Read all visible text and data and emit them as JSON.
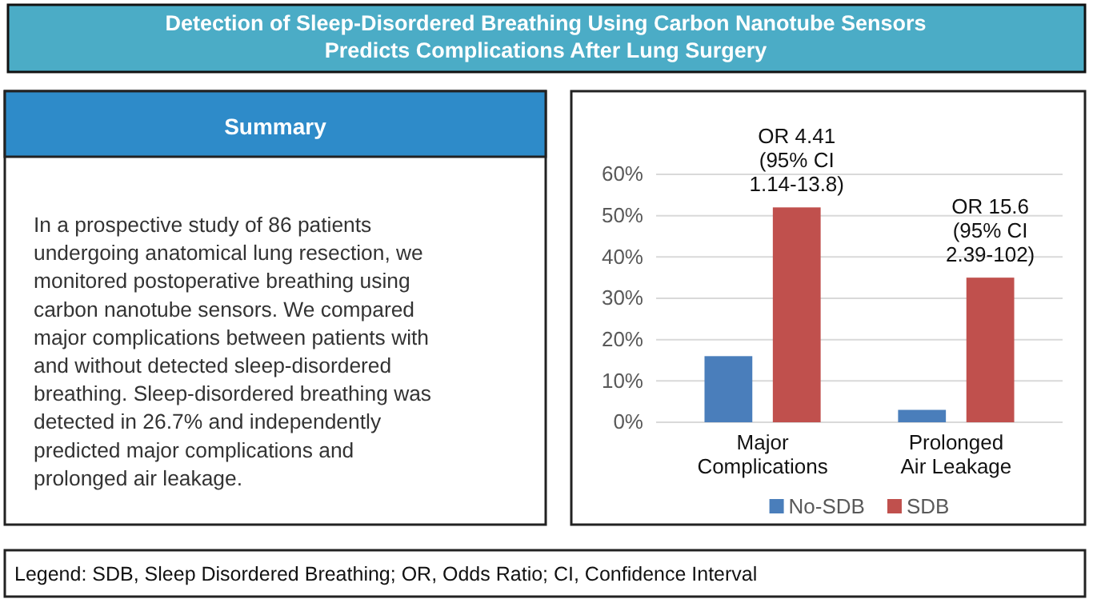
{
  "chart_data": [
    {
      "type": "other",
      "title": "Detection of Sleep-Disordered Breathing Using Carbon Nanotube Sensors Predicts Complications After Lung Surgery",
      "subtitle": "Summary",
      "annotations": [
        "In a prospective study of 86 patients undergoing anatomical lung resection, we monitored postoperative breathing using carbon nanotube sensors. We compared major complications between patients with and without detected sleep-disordered breathing. Sleep-disordered breathing was detected in 26.7% and independently predicted major complications and prolonged air leakage.",
        "Legend: SDB, Sleep Disordered Breathing; OR, Odds Ratio; CI, Confidence Interval"
      ]
    },
    {
      "type": "bar",
      "categories": [
        "Major Complications",
        "Prolonged Air Leakage"
      ],
      "series": [
        {
          "name": "No-SDB",
          "color": "#4a7ebb",
          "values": [
            16,
            3
          ]
        },
        {
          "name": "SDB",
          "color": "#c0504d",
          "values": [
            52,
            35
          ]
        }
      ],
      "ylim": [
        0,
        60
      ],
      "yticks": [
        {
          "value": 0,
          "label": "0%"
        },
        {
          "value": 10,
          "label": "10%"
        },
        {
          "value": 20,
          "label": "20%"
        },
        {
          "value": 30,
          "label": "30%"
        },
        {
          "value": 40,
          "label": "40%"
        },
        {
          "value": 50,
          "label": "50%"
        },
        {
          "value": 60,
          "label": "60%"
        }
      ],
      "grid": "y",
      "legend": "bottom",
      "annotations": [
        "OR 4.41\n(95% CI\n1.14-13.8)",
        "OR 15.6\n(95% CI\n2.39-102)"
      ]
    }
  ]
}
